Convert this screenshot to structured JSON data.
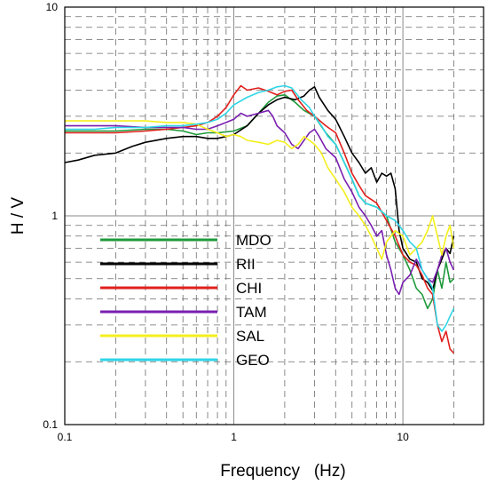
{
  "chart_data": {
    "type": "line",
    "xlabel": "Frequency   (Hz)",
    "ylabel": "H / V",
    "x_scale": "log",
    "y_scale": "log",
    "xlim": [
      0.1,
      30
    ],
    "ylim": [
      0.1,
      10
    ],
    "x_ticks": [
      0.1,
      1,
      10
    ],
    "x_tick_labels": [
      "0.1",
      "1",
      "10"
    ],
    "y_ticks": [
      0.1,
      1,
      10
    ],
    "y_tick_labels": [
      "0.1",
      "1",
      "10"
    ],
    "grid": true,
    "legend_position": "left-center",
    "series": [
      {
        "name": "MDO",
        "color": "#1e9a3a",
        "points": [
          [
            0.1,
            2.55
          ],
          [
            0.2,
            2.55
          ],
          [
            0.3,
            2.6
          ],
          [
            0.4,
            2.6
          ],
          [
            0.5,
            2.55
          ],
          [
            0.6,
            2.45
          ],
          [
            0.7,
            2.5
          ],
          [
            0.8,
            2.5
          ],
          [
            1.0,
            2.55
          ],
          [
            1.2,
            2.7
          ],
          [
            1.4,
            3.1
          ],
          [
            1.6,
            3.5
          ],
          [
            1.8,
            3.75
          ],
          [
            2.0,
            3.8
          ],
          [
            2.3,
            3.5
          ],
          [
            2.6,
            3.2
          ],
          [
            3.0,
            3.0
          ],
          [
            3.5,
            2.5
          ],
          [
            4.0,
            2.2
          ],
          [
            4.5,
            1.8
          ],
          [
            5.0,
            1.5
          ],
          [
            5.5,
            1.25
          ],
          [
            6.0,
            1.15
          ],
          [
            7.0,
            1.1
          ],
          [
            8.0,
            1.0
          ],
          [
            9.0,
            0.75
          ],
          [
            10.0,
            0.65
          ],
          [
            11.0,
            0.55
          ],
          [
            12.0,
            0.45
          ],
          [
            13.0,
            0.42
          ],
          [
            14.0,
            0.36
          ],
          [
            15.0,
            0.4
          ],
          [
            16.0,
            0.55
          ],
          [
            17.0,
            0.45
          ],
          [
            18.0,
            0.6
          ],
          [
            19.0,
            0.48
          ],
          [
            20.0,
            0.5
          ]
        ]
      },
      {
        "name": "RII",
        "color": "#000000",
        "points": [
          [
            0.1,
            1.8
          ],
          [
            0.12,
            1.85
          ],
          [
            0.15,
            1.95
          ],
          [
            0.2,
            2.0
          ],
          [
            0.25,
            2.15
          ],
          [
            0.3,
            2.25
          ],
          [
            0.4,
            2.35
          ],
          [
            0.5,
            2.4
          ],
          [
            0.6,
            2.4
          ],
          [
            0.7,
            2.35
          ],
          [
            0.8,
            2.35
          ],
          [
            0.9,
            2.4
          ],
          [
            1.0,
            2.45
          ],
          [
            1.2,
            2.7
          ],
          [
            1.4,
            3.1
          ],
          [
            1.6,
            3.4
          ],
          [
            1.8,
            3.6
          ],
          [
            2.0,
            3.7
          ],
          [
            2.3,
            3.6
          ],
          [
            2.6,
            3.75
          ],
          [
            2.8,
            4.0
          ],
          [
            3.0,
            4.15
          ],
          [
            3.2,
            3.7
          ],
          [
            3.6,
            3.2
          ],
          [
            4.0,
            2.9
          ],
          [
            4.5,
            2.4
          ],
          [
            5.0,
            2.0
          ],
          [
            5.5,
            1.8
          ],
          [
            6.0,
            1.6
          ],
          [
            6.5,
            1.7
          ],
          [
            7.0,
            1.45
          ],
          [
            7.5,
            1.6
          ],
          [
            8.0,
            1.55
          ],
          [
            8.5,
            1.6
          ],
          [
            9.0,
            1.35
          ],
          [
            9.5,
            0.85
          ],
          [
            10.0,
            0.7
          ],
          [
            11.0,
            0.62
          ],
          [
            12.0,
            0.6
          ],
          [
            13.0,
            0.5
          ],
          [
            14.0,
            0.48
          ],
          [
            15.0,
            0.44
          ],
          [
            16.0,
            0.55
          ],
          [
            17.0,
            0.62
          ],
          [
            18.0,
            0.7
          ],
          [
            19.0,
            0.66
          ],
          [
            20.0,
            0.8
          ]
        ]
      },
      {
        "name": "CHI",
        "color": "#e0201c",
        "points": [
          [
            0.1,
            2.5
          ],
          [
            0.2,
            2.5
          ],
          [
            0.3,
            2.55
          ],
          [
            0.4,
            2.6
          ],
          [
            0.5,
            2.65
          ],
          [
            0.6,
            2.7
          ],
          [
            0.7,
            2.8
          ],
          [
            0.8,
            3.0
          ],
          [
            0.9,
            3.3
          ],
          [
            1.0,
            3.8
          ],
          [
            1.1,
            4.2
          ],
          [
            1.2,
            4.0
          ],
          [
            1.4,
            4.1
          ],
          [
            1.6,
            3.95
          ],
          [
            1.8,
            3.8
          ],
          [
            2.0,
            3.95
          ],
          [
            2.2,
            4.0
          ],
          [
            2.4,
            3.6
          ],
          [
            2.7,
            3.2
          ],
          [
            3.0,
            3.0
          ],
          [
            3.5,
            2.7
          ],
          [
            4.0,
            2.5
          ],
          [
            4.5,
            2.0
          ],
          [
            5.0,
            1.6
          ],
          [
            5.5,
            1.4
          ],
          [
            6.0,
            1.25
          ],
          [
            7.0,
            1.15
          ],
          [
            8.0,
            0.95
          ],
          [
            9.0,
            0.8
          ],
          [
            10.0,
            0.65
          ],
          [
            11.0,
            0.6
          ],
          [
            12.0,
            0.58
          ],
          [
            13.0,
            0.52
          ],
          [
            14.0,
            0.45
          ],
          [
            15.0,
            0.42
          ],
          [
            16.0,
            0.3
          ],
          [
            17.0,
            0.25
          ],
          [
            18.0,
            0.28
          ],
          [
            19.0,
            0.23
          ],
          [
            20.0,
            0.22
          ]
        ]
      },
      {
        "name": "TAM",
        "color": "#7a1fb0",
        "points": [
          [
            0.1,
            2.7
          ],
          [
            0.2,
            2.7
          ],
          [
            0.3,
            2.65
          ],
          [
            0.4,
            2.65
          ],
          [
            0.5,
            2.65
          ],
          [
            0.6,
            2.6
          ],
          [
            0.7,
            2.6
          ],
          [
            0.8,
            2.7
          ],
          [
            0.9,
            2.8
          ],
          [
            1.0,
            2.9
          ],
          [
            1.1,
            3.1
          ],
          [
            1.2,
            3.0
          ],
          [
            1.4,
            3.1
          ],
          [
            1.6,
            3.2
          ],
          [
            1.7,
            3.0
          ],
          [
            1.8,
            2.7
          ],
          [
            2.0,
            2.5
          ],
          [
            2.2,
            2.2
          ],
          [
            2.4,
            2.1
          ],
          [
            2.6,
            2.3
          ],
          [
            2.8,
            2.5
          ],
          [
            3.0,
            2.6
          ],
          [
            3.2,
            2.4
          ],
          [
            3.5,
            2.1
          ],
          [
            4.0,
            1.9
          ],
          [
            4.5,
            1.5
          ],
          [
            5.0,
            1.3
          ],
          [
            5.5,
            1.1
          ],
          [
            6.0,
            1.0
          ],
          [
            6.5,
            0.9
          ],
          [
            7.0,
            0.8
          ],
          [
            7.5,
            0.85
          ],
          [
            8.0,
            0.65
          ],
          [
            8.5,
            0.55
          ],
          [
            9.0,
            0.45
          ],
          [
            9.5,
            0.42
          ],
          [
            10.0,
            0.48
          ],
          [
            11.0,
            0.52
          ],
          [
            12.0,
            0.62
          ],
          [
            13.0,
            0.55
          ],
          [
            14.0,
            0.5
          ],
          [
            15.0,
            0.48
          ],
          [
            16.0,
            0.55
          ],
          [
            17.0,
            0.65
          ],
          [
            18.0,
            0.7
          ],
          [
            19.0,
            0.6
          ],
          [
            20.0,
            0.55
          ]
        ]
      },
      {
        "name": "SAL",
        "color": "#f4ef1c",
        "points": [
          [
            0.1,
            2.85
          ],
          [
            0.15,
            2.85
          ],
          [
            0.2,
            2.85
          ],
          [
            0.3,
            2.85
          ],
          [
            0.4,
            2.8
          ],
          [
            0.5,
            2.8
          ],
          [
            0.6,
            2.75
          ],
          [
            0.7,
            2.6
          ],
          [
            0.8,
            2.5
          ],
          [
            0.9,
            2.4
          ],
          [
            1.0,
            2.45
          ],
          [
            1.1,
            2.4
          ],
          [
            1.2,
            2.3
          ],
          [
            1.4,
            2.25
          ],
          [
            1.6,
            2.2
          ],
          [
            1.8,
            2.3
          ],
          [
            2.0,
            2.25
          ],
          [
            2.2,
            2.1
          ],
          [
            2.4,
            2.2
          ],
          [
            2.6,
            2.4
          ],
          [
            2.8,
            2.3
          ],
          [
            3.0,
            2.2
          ],
          [
            3.3,
            2.0
          ],
          [
            3.6,
            1.7
          ],
          [
            4.0,
            1.5
          ],
          [
            4.5,
            1.3
          ],
          [
            5.0,
            1.1
          ],
          [
            5.5,
            1.0
          ],
          [
            6.0,
            0.9
          ],
          [
            6.5,
            0.8
          ],
          [
            7.0,
            0.7
          ],
          [
            7.5,
            0.62
          ],
          [
            8.0,
            0.75
          ],
          [
            9.0,
            0.85
          ],
          [
            10.0,
            0.8
          ],
          [
            11.0,
            0.65
          ],
          [
            12.0,
            0.7
          ],
          [
            13.0,
            0.75
          ],
          [
            14.0,
            0.85
          ],
          [
            15.0,
            1.0
          ],
          [
            16.0,
            0.8
          ],
          [
            17.0,
            0.65
          ],
          [
            18.0,
            0.8
          ],
          [
            19.0,
            0.9
          ],
          [
            20.0,
            0.7
          ]
        ]
      },
      {
        "name": "GEO",
        "color": "#2ed6e6",
        "points": [
          [
            0.1,
            2.6
          ],
          [
            0.15,
            2.6
          ],
          [
            0.2,
            2.65
          ],
          [
            0.3,
            2.65
          ],
          [
            0.4,
            2.7
          ],
          [
            0.5,
            2.7
          ],
          [
            0.6,
            2.75
          ],
          [
            0.7,
            2.8
          ],
          [
            0.8,
            2.9
          ],
          [
            0.9,
            3.1
          ],
          [
            1.0,
            3.4
          ],
          [
            1.2,
            3.7
          ],
          [
            1.4,
            3.9
          ],
          [
            1.6,
            4.0
          ],
          [
            1.8,
            4.15
          ],
          [
            2.0,
            4.2
          ],
          [
            2.2,
            4.1
          ],
          [
            2.5,
            3.6
          ],
          [
            2.8,
            3.3
          ],
          [
            3.0,
            3.0
          ],
          [
            3.3,
            2.7
          ],
          [
            3.6,
            2.4
          ],
          [
            4.0,
            2.2
          ],
          [
            4.5,
            1.8
          ],
          [
            5.0,
            1.5
          ],
          [
            5.5,
            1.25
          ],
          [
            6.0,
            1.15
          ],
          [
            7.0,
            1.1
          ],
          [
            8.0,
            1.0
          ],
          [
            9.0,
            0.95
          ],
          [
            10.0,
            0.85
          ],
          [
            11.0,
            0.75
          ],
          [
            12.0,
            0.7
          ],
          [
            13.0,
            0.55
          ],
          [
            14.0,
            0.5
          ],
          [
            15.0,
            0.45
          ],
          [
            16.0,
            0.3
          ],
          [
            17.0,
            0.28
          ],
          [
            18.0,
            0.3
          ],
          [
            19.0,
            0.33
          ],
          [
            20.0,
            0.36
          ]
        ]
      }
    ]
  }
}
